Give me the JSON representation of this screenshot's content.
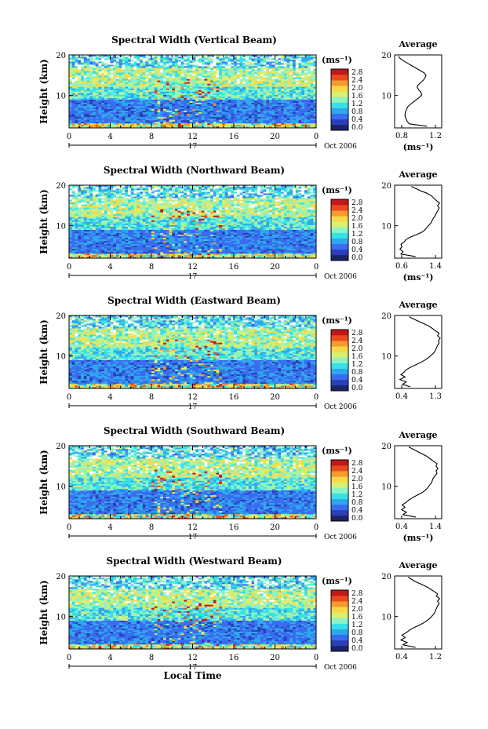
{
  "colors": {
    "scale": [
      "#1a2466",
      "#2b3fb8",
      "#3a6cf0",
      "#2fa7ee",
      "#36e0e6",
      "#8ff2c4",
      "#d8f070",
      "#f7d848",
      "#f59a2e",
      "#e84a1e",
      "#c21818"
    ],
    "line": "#000000"
  },
  "shared": {
    "unit_label": "(ms⁻¹)",
    "date_label": "Oct 2006",
    "day_label": "17",
    "avg_title": "Average",
    "height_label": "Height (km)",
    "xaxis_title": "Local Time",
    "colorbar_ticks": [
      "0.0",
      "0.4",
      "0.8",
      "1.2",
      "1.6",
      "2.0",
      "2.4",
      "2.8"
    ],
    "height_ticks": [
      "20",
      "10"
    ],
    "time_ticks": [
      "0",
      "4",
      "8",
      "12",
      "16",
      "20",
      "0"
    ]
  },
  "chart_data": [
    {
      "type": "heatmap",
      "title": "Spectral Width (Vertical Beam)",
      "xlabel": "",
      "ylabel": "Height (km)",
      "xlim": [
        0,
        24
      ],
      "ylim": [
        2,
        20
      ],
      "colorbar_range": [
        0,
        2.8
      ],
      "average": {
        "type": "line",
        "title": "Average",
        "xlabel": "(ms⁻¹)",
        "xlim": [
          0.5,
          1.4
        ],
        "xticks": [
          "0.8",
          "1.2"
        ],
        "x": [
          1.12,
          0.78,
          0.74,
          0.72,
          0.7,
          0.7,
          0.71,
          0.73,
          0.75,
          0.8,
          0.86,
          0.92,
          0.98,
          1.02,
          1.0,
          0.96,
          0.93,
          0.95,
          1.0,
          1.05,
          1.08,
          1.1,
          1.06,
          0.98,
          0.9,
          0.82,
          0.74,
          0.66,
          0.6,
          0.58
        ],
        "y": [
          2.4,
          3,
          3.6,
          4.2,
          4.8,
          5.4,
          6,
          6.6,
          7.2,
          7.8,
          8.4,
          9,
          9.6,
          10.2,
          10.8,
          11.4,
          12,
          12.6,
          13.2,
          13.8,
          14.4,
          15,
          15.6,
          16.2,
          16.8,
          17.4,
          18,
          18.6,
          19.2,
          19.7
        ]
      }
    },
    {
      "type": "heatmap",
      "title": "Spectral Width (Northward Beam)",
      "xlabel": "",
      "ylabel": "Height (km)",
      "xlim": [
        0,
        24
      ],
      "ylim": [
        2,
        20
      ],
      "colorbar_range": [
        0,
        2.8
      ],
      "average": {
        "type": "line",
        "title": "Average",
        "xlabel": "(ms⁻¹)",
        "xlim": [
          0.5,
          1.4
        ],
        "xticks": [
          "0.6",
          "1.4"
        ],
        "x": [
          0.9,
          0.62,
          0.66,
          0.6,
          0.64,
          0.62,
          0.68,
          0.72,
          0.8,
          0.92,
          1.02,
          1.08,
          1.12,
          1.16,
          1.2,
          1.22,
          1.25,
          1.28,
          1.3,
          1.33,
          1.35,
          1.32,
          1.36,
          1.3,
          1.25,
          1.2,
          1.12,
          1.0,
          0.9,
          0.82
        ],
        "y": [
          2.4,
          3,
          3.6,
          4.2,
          4.8,
          5.4,
          6,
          6.6,
          7.2,
          7.8,
          8.4,
          9,
          9.6,
          10.2,
          10.8,
          11.4,
          12,
          12.6,
          13.2,
          13.8,
          14.4,
          15,
          15.6,
          16.2,
          16.8,
          17.4,
          18,
          18.6,
          19.2,
          19.7
        ]
      }
    },
    {
      "type": "heatmap",
      "title": "Spectral Width (Eastward Beam)",
      "xlabel": "",
      "ylabel": "Height (km)",
      "xlim": [
        0,
        24
      ],
      "ylim": [
        2,
        20
      ],
      "colorbar_range": [
        0,
        2.8
      ],
      "average": {
        "type": "line",
        "title": "Average",
        "xlabel": "",
        "xlim": [
          0.4,
          1.3
        ],
        "xticks": [
          "0.4",
          "1.3"
        ],
        "x": [
          0.7,
          0.55,
          0.62,
          0.5,
          0.6,
          0.52,
          0.58,
          0.62,
          0.7,
          0.8,
          0.9,
          0.98,
          1.05,
          1.1,
          1.15,
          1.18,
          1.2,
          1.22,
          1.25,
          1.24,
          1.27,
          1.22,
          1.25,
          1.18,
          1.12,
          1.05,
          0.95,
          0.85,
          0.75,
          0.68
        ],
        "y": [
          2.4,
          3,
          3.6,
          4.2,
          4.8,
          5.4,
          6,
          6.6,
          7.2,
          7.8,
          8.4,
          9,
          9.6,
          10.2,
          10.8,
          11.4,
          12,
          12.6,
          13.2,
          13.8,
          14.4,
          15,
          15.6,
          16.2,
          16.8,
          17.4,
          18,
          18.6,
          19.2,
          19.7
        ]
      }
    },
    {
      "type": "heatmap",
      "title": "Spectral Width (Southward Beam)",
      "xlabel": "",
      "ylabel": "Height (km)",
      "xlim": [
        0,
        24
      ],
      "ylim": [
        2,
        20
      ],
      "colorbar_range": [
        0,
        2.8
      ],
      "average": {
        "type": "line",
        "title": "Average",
        "xlabel": "(ms⁻¹)",
        "xlim": [
          0.4,
          1.4
        ],
        "xticks": [
          "0.4",
          "1.4"
        ],
        "x": [
          0.85,
          0.58,
          0.65,
          0.55,
          0.62,
          0.56,
          0.64,
          0.7,
          0.78,
          0.88,
          0.98,
          1.05,
          1.1,
          1.14,
          1.18,
          1.2,
          1.22,
          1.26,
          1.3,
          1.28,
          1.32,
          1.28,
          1.3,
          1.22,
          1.15,
          1.08,
          0.98,
          0.88,
          0.78,
          0.7
        ],
        "y": [
          2.4,
          3,
          3.6,
          4.2,
          4.8,
          5.4,
          6,
          6.6,
          7.2,
          7.8,
          8.4,
          9,
          9.6,
          10.2,
          10.8,
          11.4,
          12,
          12.6,
          13.2,
          13.8,
          14.4,
          15,
          15.6,
          16.2,
          16.8,
          17.4,
          18,
          18.6,
          19.2,
          19.7
        ]
      }
    },
    {
      "type": "heatmap",
      "title": "Spectral Width (Westward Beam)",
      "xlabel": "Local Time",
      "ylabel": "Height (km)",
      "xlim": [
        0,
        24
      ],
      "ylim": [
        2,
        20
      ],
      "colorbar_range": [
        0,
        2.8
      ],
      "average": {
        "type": "line",
        "title": "Average",
        "xlabel": "",
        "xlim": [
          0.4,
          1.3
        ],
        "xticks": [
          "0.4",
          "1.2"
        ],
        "x": [
          0.8,
          0.56,
          0.64,
          0.52,
          0.6,
          0.54,
          0.62,
          0.68,
          0.76,
          0.86,
          0.95,
          1.02,
          1.08,
          1.12,
          1.16,
          1.18,
          1.2,
          1.22,
          1.25,
          1.22,
          1.26,
          1.2,
          1.22,
          1.15,
          1.08,
          1.0,
          0.9,
          0.8,
          0.72,
          0.66
        ],
        "y": [
          2.4,
          3,
          3.6,
          4.2,
          4.8,
          5.4,
          6,
          6.6,
          7.2,
          7.8,
          8.4,
          9,
          9.6,
          10.2,
          10.8,
          11.4,
          12,
          12.6,
          13.2,
          13.8,
          14.4,
          15,
          15.6,
          16.2,
          16.8,
          17.4,
          18,
          18.6,
          19.2,
          19.7
        ]
      }
    }
  ]
}
